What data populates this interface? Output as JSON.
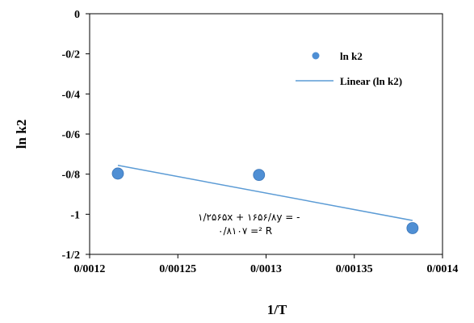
{
  "chart_data": {
    "type": "scatter",
    "title": "",
    "xlabel": "1/T",
    "ylabel": "ln k2",
    "xlim": [
      0.0012,
      0.0014
    ],
    "ylim": [
      -1.2,
      0
    ],
    "x_ticks": [
      "0/0012",
      "0/00125",
      "0/0013",
      "0/00135",
      "0/0014"
    ],
    "y_ticks": [
      "0",
      "-0/2",
      "-0/4",
      "-0/6",
      "-0/8",
      "-1",
      "-1/2"
    ],
    "grid": false,
    "legend_position": "top-right",
    "series": [
      {
        "name": "ln k2",
        "kind": "markers",
        "color": "#4f8fd4",
        "x": [
          0.001216,
          0.001296,
          0.001383
        ],
        "y": [
          -0.797,
          -0.804,
          -1.069
        ]
      },
      {
        "name": "Linear (ln k2)",
        "kind": "trendline",
        "color": "#5b9bd5",
        "x": [
          0.001216,
          0.001383
        ],
        "y": [
          -0.756,
          -1.031
        ]
      }
    ],
    "annotation": {
      "line1": "۱/۲۵۶۵x + ۱۶۵۶/۸y = -",
      "line2": "۰/۸۱۰۷ =² R"
    }
  }
}
